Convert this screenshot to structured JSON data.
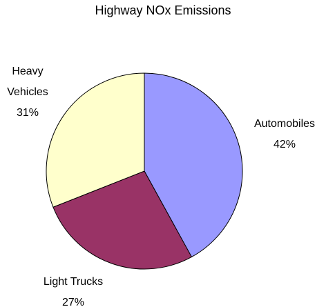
{
  "chart_data": {
    "type": "pie",
    "title": "Highway NOx Emissions",
    "categories": [
      "Automobiles",
      "Light Trucks",
      "Heavy Vehicles"
    ],
    "values": [
      42,
      27,
      31
    ],
    "value_labels": [
      "42%",
      "27%",
      "31%"
    ],
    "colors": [
      "#9999ff",
      "#993366",
      "#ffffcc"
    ]
  }
}
